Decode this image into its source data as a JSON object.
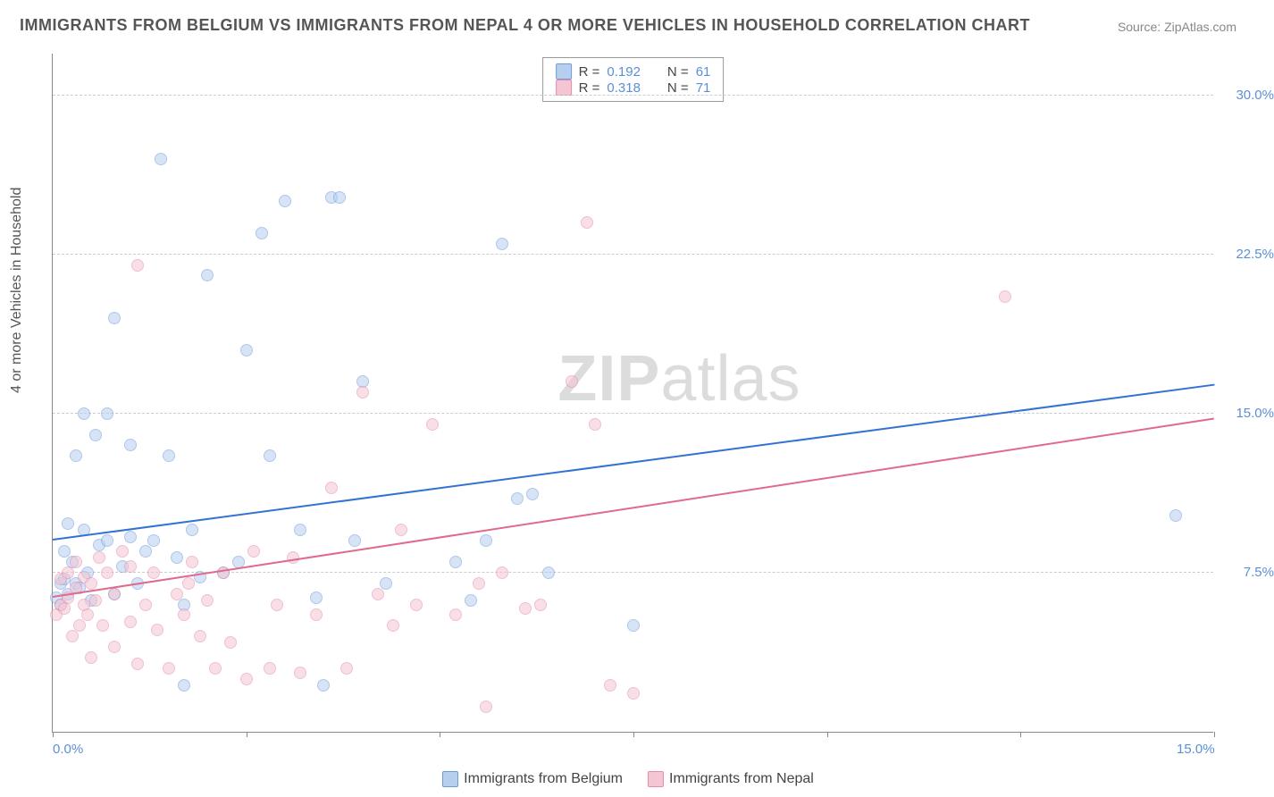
{
  "title": "IMMIGRANTS FROM BELGIUM VS IMMIGRANTS FROM NEPAL 4 OR MORE VEHICLES IN HOUSEHOLD CORRELATION CHART",
  "source_prefix": "Source: ",
  "source_name": "ZipAtlas.com",
  "ylabel": "4 or more Vehicles in Household",
  "watermark_bold": "ZIP",
  "watermark_rest": "atlas",
  "chart": {
    "type": "scatter",
    "xlim": [
      0.0,
      15.0
    ],
    "ylim": [
      0.0,
      32.0
    ],
    "xticks": [
      0.0,
      2.5,
      5.0,
      7.5,
      10.0,
      12.5,
      15.0
    ],
    "xtick_labels_shown": {
      "0": "0.0%",
      "6": "15.0%"
    },
    "yticks": [
      7.5,
      15.0,
      22.5,
      30.0
    ],
    "ytick_labels": [
      "7.5%",
      "15.0%",
      "22.5%",
      "30.0%"
    ],
    "grid_color": "#cccccc",
    "axis_color": "#888888",
    "background_color": "#ffffff",
    "series": [
      {
        "name": "Immigrants from Belgium",
        "color_fill": "#b7cfef",
        "color_stroke": "#6d9adf",
        "r_value": "0.192",
        "n_value": "61",
        "trend": {
          "x1": 0.0,
          "y1": 9.0,
          "x2": 15.0,
          "y2": 16.3,
          "color": "#3273d1",
          "width": 2
        },
        "points": [
          [
            0.05,
            6.3
          ],
          [
            0.1,
            7.0
          ],
          [
            0.1,
            6.0
          ],
          [
            0.15,
            7.2
          ],
          [
            0.15,
            8.5
          ],
          [
            0.2,
            6.5
          ],
          [
            0.2,
            9.8
          ],
          [
            0.25,
            8.0
          ],
          [
            0.3,
            7.0
          ],
          [
            0.3,
            13.0
          ],
          [
            0.35,
            6.8
          ],
          [
            0.4,
            9.5
          ],
          [
            0.4,
            15.0
          ],
          [
            0.45,
            7.5
          ],
          [
            0.5,
            6.2
          ],
          [
            0.55,
            14.0
          ],
          [
            0.6,
            8.8
          ],
          [
            0.7,
            15.0
          ],
          [
            0.7,
            9.0
          ],
          [
            0.8,
            6.5
          ],
          [
            0.8,
            19.5
          ],
          [
            0.9,
            7.8
          ],
          [
            1.0,
            13.5
          ],
          [
            1.0,
            9.2
          ],
          [
            1.1,
            7.0
          ],
          [
            1.2,
            8.5
          ],
          [
            1.3,
            9.0
          ],
          [
            1.4,
            27.0
          ],
          [
            1.5,
            13.0
          ],
          [
            1.6,
            8.2
          ],
          [
            1.7,
            2.2
          ],
          [
            1.7,
            6.0
          ],
          [
            1.8,
            9.5
          ],
          [
            1.9,
            7.3
          ],
          [
            2.0,
            21.5
          ],
          [
            2.2,
            7.5
          ],
          [
            2.4,
            8.0
          ],
          [
            2.5,
            18.0
          ],
          [
            2.7,
            23.5
          ],
          [
            2.8,
            13.0
          ],
          [
            3.0,
            25.0
          ],
          [
            3.2,
            9.5
          ],
          [
            3.4,
            6.3
          ],
          [
            3.5,
            2.2
          ],
          [
            3.6,
            25.2
          ],
          [
            3.7,
            25.2
          ],
          [
            3.9,
            9.0
          ],
          [
            4.0,
            16.5
          ],
          [
            4.3,
            7.0
          ],
          [
            5.2,
            8.0
          ],
          [
            5.4,
            6.2
          ],
          [
            5.6,
            9.0
          ],
          [
            5.8,
            23.0
          ],
          [
            6.0,
            11.0
          ],
          [
            6.2,
            11.2
          ],
          [
            6.4,
            7.5
          ],
          [
            7.5,
            5.0
          ],
          [
            14.5,
            10.2
          ]
        ]
      },
      {
        "name": "Immigrants from Nepal",
        "color_fill": "#f4c6d3",
        "color_stroke": "#e98aaa",
        "r_value": "0.318",
        "n_value": "71",
        "trend": {
          "x1": 0.0,
          "y1": 6.3,
          "x2": 15.0,
          "y2": 14.7,
          "color": "#e06a8d",
          "width": 2
        },
        "points": [
          [
            0.05,
            5.5
          ],
          [
            0.1,
            6.0
          ],
          [
            0.1,
            7.2
          ],
          [
            0.15,
            5.8
          ],
          [
            0.2,
            6.3
          ],
          [
            0.2,
            7.5
          ],
          [
            0.25,
            4.5
          ],
          [
            0.3,
            6.8
          ],
          [
            0.3,
            8.0
          ],
          [
            0.35,
            5.0
          ],
          [
            0.4,
            6.0
          ],
          [
            0.4,
            7.3
          ],
          [
            0.45,
            5.5
          ],
          [
            0.5,
            3.5
          ],
          [
            0.5,
            7.0
          ],
          [
            0.55,
            6.2
          ],
          [
            0.6,
            8.2
          ],
          [
            0.65,
            5.0
          ],
          [
            0.7,
            7.5
          ],
          [
            0.8,
            4.0
          ],
          [
            0.8,
            6.5
          ],
          [
            0.9,
            8.5
          ],
          [
            1.0,
            5.2
          ],
          [
            1.0,
            7.8
          ],
          [
            1.1,
            3.2
          ],
          [
            1.1,
            22.0
          ],
          [
            1.2,
            6.0
          ],
          [
            1.3,
            7.5
          ],
          [
            1.35,
            4.8
          ],
          [
            1.5,
            3.0
          ],
          [
            1.6,
            6.5
          ],
          [
            1.7,
            5.5
          ],
          [
            1.75,
            7.0
          ],
          [
            1.8,
            8.0
          ],
          [
            1.9,
            4.5
          ],
          [
            2.0,
            6.2
          ],
          [
            2.1,
            3.0
          ],
          [
            2.2,
            7.5
          ],
          [
            2.3,
            4.2
          ],
          [
            2.5,
            2.5
          ],
          [
            2.6,
            8.5
          ],
          [
            2.8,
            3.0
          ],
          [
            2.9,
            6.0
          ],
          [
            3.1,
            8.2
          ],
          [
            3.2,
            2.8
          ],
          [
            3.4,
            5.5
          ],
          [
            3.6,
            11.5
          ],
          [
            3.8,
            3.0
          ],
          [
            4.0,
            16.0
          ],
          [
            4.2,
            6.5
          ],
          [
            4.4,
            5.0
          ],
          [
            4.5,
            9.5
          ],
          [
            4.7,
            6.0
          ],
          [
            4.9,
            14.5
          ],
          [
            5.2,
            5.5
          ],
          [
            5.5,
            7.0
          ],
          [
            5.6,
            1.2
          ],
          [
            5.8,
            7.5
          ],
          [
            6.1,
            5.8
          ],
          [
            6.3,
            6.0
          ],
          [
            6.7,
            16.5
          ],
          [
            6.9,
            24.0
          ],
          [
            7.0,
            14.5
          ],
          [
            7.2,
            2.2
          ],
          [
            7.5,
            1.8
          ],
          [
            12.3,
            20.5
          ]
        ]
      }
    ],
    "legend_top": {
      "r_label": "R =",
      "n_label": "N ="
    },
    "legend_bottom_labels": [
      "Immigrants from Belgium",
      "Immigrants from Nepal"
    ]
  }
}
